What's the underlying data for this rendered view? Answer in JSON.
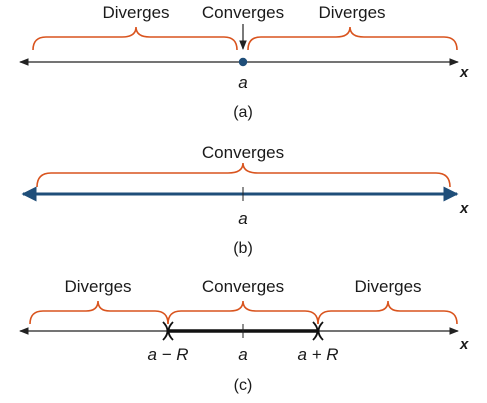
{
  "colors": {
    "brace": "#d9541e",
    "axis": "#222222",
    "highlight": "#1f4e79",
    "point": "#1f4e79"
  },
  "panel_a": {
    "left_label": "Diverges",
    "center_label": "Converges",
    "right_label": "Diverges",
    "center_tick": "a",
    "axis_label": "x",
    "caption": "(a)"
  },
  "panel_b": {
    "label": "Converges",
    "center_tick": "a",
    "axis_label": "x",
    "caption": "(b)"
  },
  "panel_c": {
    "left_label": "Diverges",
    "center_label": "Converges",
    "right_label": "Diverges",
    "left_tick": "a − R",
    "center_tick": "a",
    "right_tick": "a + R",
    "axis_label": "x",
    "caption": "(c)"
  }
}
